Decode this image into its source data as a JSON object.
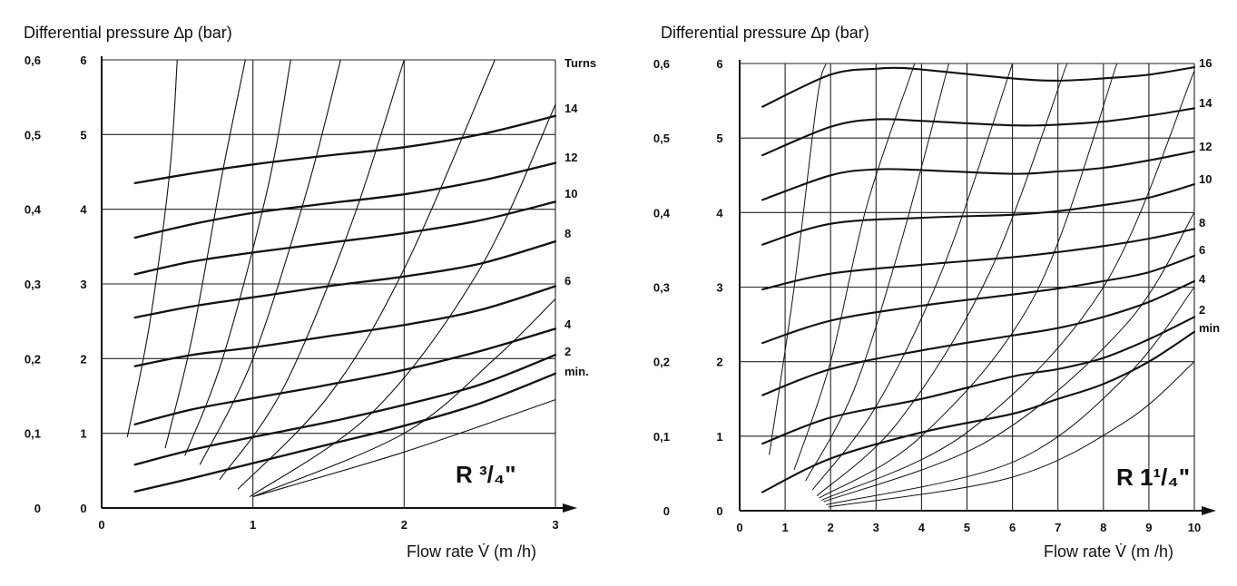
{
  "chart_data": [
    {
      "type": "line",
      "title": "",
      "ylabel": "Differential pressure ∆p (bar)",
      "xlabel": "Flow rate V̇ (m /h)",
      "model_label": "R ³/₄\"",
      "xlim": [
        0,
        3
      ],
      "ylim": [
        0,
        6
      ],
      "x_ticks": [
        "0",
        "1",
        "2",
        "3"
      ],
      "y_ticks_inner": [
        "0",
        "1",
        "2",
        "3",
        "4",
        "5",
        "6"
      ],
      "y_ticks_outer": [
        "0",
        "0,1",
        "0,2",
        "0,3",
        "0,4",
        "0,5",
        "0,6"
      ],
      "right_labels": [
        "Turns",
        "14",
        "12",
        "10",
        "8",
        "6",
        "4",
        "2",
        "min."
      ],
      "grid": true,
      "series": [
        {
          "name": "min.",
          "points": [
            [
              0.22,
              0.22
            ],
            [
              0.6,
              0.4
            ],
            [
              1.0,
              0.6
            ],
            [
              1.5,
              0.85
            ],
            [
              2.0,
              1.1
            ],
            [
              2.5,
              1.4
            ],
            [
              3.0,
              1.8
            ]
          ]
        },
        {
          "name": "2",
          "points": [
            [
              0.22,
              0.58
            ],
            [
              0.6,
              0.78
            ],
            [
              1.0,
              0.95
            ],
            [
              1.5,
              1.15
            ],
            [
              2.0,
              1.38
            ],
            [
              2.5,
              1.65
            ],
            [
              3.0,
              2.05
            ]
          ]
        },
        {
          "name": "4",
          "points": [
            [
              0.22,
              1.12
            ],
            [
              0.6,
              1.32
            ],
            [
              1.0,
              1.47
            ],
            [
              1.5,
              1.65
            ],
            [
              2.0,
              1.85
            ],
            [
              2.5,
              2.1
            ],
            [
              3.0,
              2.4
            ]
          ]
        },
        {
          "name": "6",
          "points": [
            [
              0.22,
              1.9
            ],
            [
              0.6,
              2.05
            ],
            [
              1.0,
              2.15
            ],
            [
              1.5,
              2.3
            ],
            [
              2.0,
              2.45
            ],
            [
              2.5,
              2.65
            ],
            [
              3.0,
              2.97
            ]
          ]
        },
        {
          "name": "8",
          "points": [
            [
              0.22,
              2.55
            ],
            [
              0.6,
              2.7
            ],
            [
              1.0,
              2.82
            ],
            [
              1.5,
              2.97
            ],
            [
              2.0,
              3.1
            ],
            [
              2.5,
              3.27
            ],
            [
              3.0,
              3.57
            ]
          ]
        },
        {
          "name": "10",
          "points": [
            [
              0.22,
              3.13
            ],
            [
              0.6,
              3.3
            ],
            [
              1.0,
              3.42
            ],
            [
              1.5,
              3.55
            ],
            [
              2.0,
              3.68
            ],
            [
              2.5,
              3.85
            ],
            [
              3.0,
              4.1
            ]
          ]
        },
        {
          "name": "12",
          "points": [
            [
              0.22,
              3.62
            ],
            [
              0.6,
              3.8
            ],
            [
              1.0,
              3.95
            ],
            [
              1.5,
              4.08
            ],
            [
              2.0,
              4.2
            ],
            [
              2.5,
              4.38
            ],
            [
              3.0,
              4.62
            ]
          ]
        },
        {
          "name": "14",
          "points": [
            [
              0.22,
              4.35
            ],
            [
              0.6,
              4.48
            ],
            [
              1.0,
              4.6
            ],
            [
              1.5,
              4.72
            ],
            [
              2.0,
              4.83
            ],
            [
              2.5,
              5.0
            ],
            [
              3.0,
              5.25
            ]
          ]
        }
      ],
      "kvs_lines": [
        {
          "points": [
            [
              0.17,
              0.95
            ],
            [
              0.32,
              2.5
            ],
            [
              0.45,
              4.5
            ],
            [
              0.5,
              6.0
            ]
          ]
        },
        {
          "points": [
            [
              0.42,
              0.8
            ],
            [
              0.6,
              2.3
            ],
            [
              0.8,
              4.5
            ],
            [
              0.95,
              6.0
            ]
          ]
        },
        {
          "points": [
            [
              0.55,
              0.7
            ],
            [
              0.8,
              2.0
            ],
            [
              1.1,
              4.3
            ],
            [
              1.25,
              6.0
            ]
          ]
        },
        {
          "points": [
            [
              0.65,
              0.58
            ],
            [
              1.0,
              2.0
            ],
            [
              1.35,
              4.2
            ],
            [
              1.58,
              6.0
            ]
          ]
        },
        {
          "points": [
            [
              0.78,
              0.38
            ],
            [
              1.2,
              1.6
            ],
            [
              1.65,
              3.8
            ],
            [
              2.0,
              6.0
            ]
          ]
        },
        {
          "points": [
            [
              0.9,
              0.25
            ],
            [
              1.5,
              1.5
            ],
            [
              2.0,
              3.2
            ],
            [
              2.6,
              6.0
            ]
          ]
        },
        {
          "points": [
            [
              0.98,
              0.15
            ],
            [
              1.8,
              1.3
            ],
            [
              2.5,
              3.2
            ],
            [
              3.0,
              5.4
            ]
          ]
        },
        {
          "points": [
            [
              1.0,
              0.15
            ],
            [
              2.0,
              1.0
            ],
            [
              2.6,
              2.0
            ],
            [
              3.0,
              2.8
            ]
          ]
        },
        {
          "points": [
            [
              1.0,
              0.15
            ],
            [
              2.0,
              0.75
            ],
            [
              3.0,
              1.45
            ]
          ]
        }
      ]
    },
    {
      "type": "line",
      "title": "",
      "ylabel": "Differential pressure ∆p (bar)",
      "xlabel": "Flow rate V̇ (m /h)",
      "model_label": "R 1¹/₄\"",
      "xlim": [
        0,
        10
      ],
      "ylim": [
        0,
        6
      ],
      "x_ticks": [
        "0",
        "1",
        "2",
        "3",
        "4",
        "5",
        "6",
        "7",
        "8",
        "9",
        "10"
      ],
      "y_ticks_inner": [
        "0",
        "1",
        "2",
        "3",
        "4",
        "5",
        "6"
      ],
      "y_ticks_outer": [
        "0",
        "0,1",
        "0,2",
        "0,3",
        "0,4",
        "0,5",
        "0,6"
      ],
      "right_labels": [
        "16",
        "14",
        "12",
        "10",
        "8",
        "6",
        "4",
        "2",
        "min"
      ],
      "grid": true,
      "series": [
        {
          "name": "min",
          "points": [
            [
              0.5,
              0.25
            ],
            [
              2.0,
              0.7
            ],
            [
              4.0,
              1.05
            ],
            [
              6.0,
              1.3
            ],
            [
              7.0,
              1.5
            ],
            [
              8.0,
              1.7
            ],
            [
              9.0,
              2.0
            ],
            [
              10.0,
              2.4
            ]
          ]
        },
        {
          "name": "2",
          "points": [
            [
              0.5,
              0.9
            ],
            [
              2.0,
              1.25
            ],
            [
              4.0,
              1.5
            ],
            [
              6.0,
              1.8
            ],
            [
              7.0,
              1.9
            ],
            [
              8.0,
              2.05
            ],
            [
              9.0,
              2.3
            ],
            [
              10.0,
              2.6
            ]
          ]
        },
        {
          "name": "4",
          "points": [
            [
              0.5,
              1.55
            ],
            [
              2.0,
              1.9
            ],
            [
              4.0,
              2.15
            ],
            [
              6.0,
              2.35
            ],
            [
              7.0,
              2.45
            ],
            [
              8.0,
              2.6
            ],
            [
              9.0,
              2.8
            ],
            [
              10.0,
              3.08
            ]
          ]
        },
        {
          "name": "6",
          "points": [
            [
              0.5,
              2.25
            ],
            [
              2.0,
              2.55
            ],
            [
              4.0,
              2.75
            ],
            [
              6.0,
              2.9
            ],
            [
              7.0,
              2.98
            ],
            [
              8.0,
              3.08
            ],
            [
              9.0,
              3.2
            ],
            [
              10.0,
              3.42
            ]
          ]
        },
        {
          "name": "8",
          "points": [
            [
              0.5,
              2.97
            ],
            [
              2.0,
              3.18
            ],
            [
              4.0,
              3.3
            ],
            [
              6.0,
              3.4
            ],
            [
              7.0,
              3.47
            ],
            [
              8.0,
              3.55
            ],
            [
              9.0,
              3.65
            ],
            [
              10.0,
              3.78
            ]
          ]
        },
        {
          "name": "10",
          "points": [
            [
              0.5,
              3.57
            ],
            [
              2.0,
              3.85
            ],
            [
              4.0,
              3.93
            ],
            [
              6.0,
              3.97
            ],
            [
              7.0,
              4.02
            ],
            [
              8.0,
              4.1
            ],
            [
              9.0,
              4.2
            ],
            [
              10.0,
              4.38
            ]
          ]
        },
        {
          "name": "12",
          "points": [
            [
              0.5,
              4.17
            ],
            [
              2.0,
              4.5
            ],
            [
              3.0,
              4.58
            ],
            [
              4.0,
              4.57
            ],
            [
              6.0,
              4.52
            ],
            [
              7.0,
              4.55
            ],
            [
              8.0,
              4.6
            ],
            [
              9.0,
              4.7
            ],
            [
              10.0,
              4.82
            ]
          ]
        },
        {
          "name": "14",
          "points": [
            [
              0.5,
              4.77
            ],
            [
              2.0,
              5.15
            ],
            [
              3.0,
              5.25
            ],
            [
              4.0,
              5.23
            ],
            [
              6.0,
              5.17
            ],
            [
              7.0,
              5.18
            ],
            [
              8.0,
              5.22
            ],
            [
              9.0,
              5.3
            ],
            [
              10.0,
              5.4
            ]
          ]
        },
        {
          "name": "16",
          "points": [
            [
              0.5,
              5.42
            ],
            [
              2.0,
              5.85
            ],
            [
              3.0,
              5.93
            ],
            [
              3.5,
              5.94
            ],
            [
              4.0,
              5.92
            ],
            [
              6.0,
              5.8
            ],
            [
              7.0,
              5.77
            ],
            [
              8.0,
              5.8
            ],
            [
              9.0,
              5.85
            ],
            [
              10.0,
              5.95
            ]
          ]
        }
      ],
      "kvs_lines": [
        {
          "points": [
            [
              0.65,
              0.75
            ],
            [
              1.2,
              3.0
            ],
            [
              1.7,
              5.5
            ],
            [
              1.9,
              6.0
            ]
          ]
        },
        {
          "points": [
            [
              1.2,
              0.55
            ],
            [
              2.0,
              2.0
            ],
            [
              2.8,
              4.1
            ],
            [
              3.85,
              6.0
            ]
          ]
        },
        {
          "points": [
            [
              1.45,
              0.4
            ],
            [
              2.5,
              1.6
            ],
            [
              3.5,
              3.5
            ],
            [
              4.6,
              6.0
            ]
          ]
        },
        {
          "points": [
            [
              1.6,
              0.28
            ],
            [
              3.0,
              1.4
            ],
            [
              4.5,
              3.3
            ],
            [
              6.0,
              6.0
            ]
          ]
        },
        {
          "points": [
            [
              1.7,
              0.2
            ],
            [
              3.5,
              1.2
            ],
            [
              5.5,
              3.2
            ],
            [
              7.2,
              6.0
            ]
          ]
        },
        {
          "points": [
            [
              1.75,
              0.17
            ],
            [
              4.0,
              1.0
            ],
            [
              6.5,
              2.9
            ],
            [
              8.3,
              6.0
            ]
          ]
        },
        {
          "points": [
            [
              1.8,
              0.14
            ],
            [
              5.0,
              1.05
            ],
            [
              8.0,
              3.0
            ],
            [
              10.0,
              5.9
            ]
          ]
        },
        {
          "points": [
            [
              1.85,
              0.12
            ],
            [
              5.5,
              0.95
            ],
            [
              8.5,
              2.5
            ],
            [
              10.0,
              4.0
            ]
          ]
        },
        {
          "points": [
            [
              1.9,
              0.08
            ],
            [
              6.0,
              0.65
            ],
            [
              8.5,
              1.8
            ],
            [
              10.0,
              3.0
            ]
          ]
        },
        {
          "points": [
            [
              1.95,
              0.05
            ],
            [
              6.0,
              0.45
            ],
            [
              8.5,
              1.2
            ],
            [
              10.0,
              2.0
            ]
          ]
        }
      ]
    }
  ]
}
